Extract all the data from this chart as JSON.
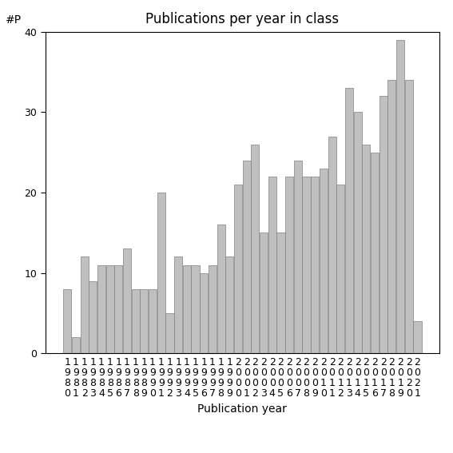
{
  "title": "Publications per year in class",
  "xlabel": "Publication year",
  "ylabel": "#P",
  "bar_color": "#c0c0c0",
  "bar_edge_color": "#808080",
  "years": [
    1980,
    1981,
    1982,
    1983,
    1984,
    1985,
    1986,
    1987,
    1988,
    1989,
    1990,
    1991,
    1992,
    1993,
    1994,
    1995,
    1996,
    1997,
    1998,
    1999,
    2000,
    2001,
    2002,
    2003,
    2004,
    2005,
    2006,
    2007,
    2008,
    2009,
    2010,
    2011,
    2012,
    2013,
    2014,
    2015,
    2016,
    2017,
    2018,
    2019,
    2020,
    2021
  ],
  "values": [
    8,
    2,
    12,
    9,
    11,
    11,
    11,
    13,
    8,
    8,
    8,
    20,
    5,
    12,
    11,
    11,
    10,
    11,
    16,
    12,
    21,
    24,
    26,
    15,
    22,
    15,
    22,
    24,
    22,
    22,
    23,
    27,
    21,
    33,
    30,
    26,
    25,
    32,
    34,
    39,
    34,
    4
  ],
  "ylim": [
    0,
    40
  ],
  "yticks": [
    0,
    10,
    20,
    30,
    40
  ],
  "background_color": "#ffffff",
  "title_fontsize": 12,
  "label_fontsize": 10,
  "tick_fontsize": 9
}
